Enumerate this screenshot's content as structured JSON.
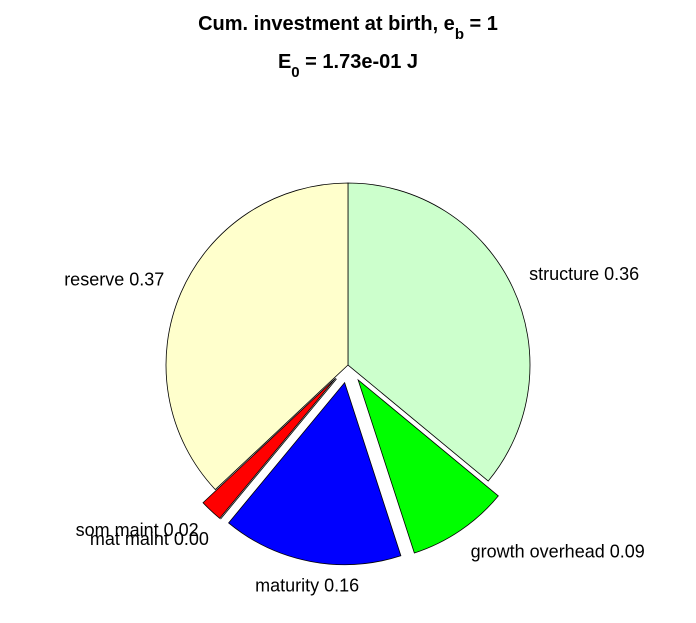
{
  "chart_data": {
    "type": "pie",
    "title": [
      {
        "text": "Cum. investment at birth, e"
      },
      {
        "sub": "b"
      },
      {
        "text": " = 1"
      }
    ],
    "subtitle": [
      {
        "text": "E"
      },
      {
        "sub": "0"
      },
      {
        "text": " = 1.73e-01 J"
      }
    ],
    "categories": [
      "structure",
      "growth overhead",
      "maturity",
      "mat maint",
      "som maint",
      "reserve"
    ],
    "values": [
      0.36,
      0.09,
      0.16,
      0.0,
      0.02,
      0.37
    ],
    "labels": [
      "structure 0.36",
      "growth overhead 0.09",
      "maturity 0.16",
      "mat maint 0.00",
      "som maint 0.02",
      "reserve 0.37"
    ],
    "colors": [
      "#ccffcc",
      "#00ff00",
      "#0000ff",
      "#00ffff",
      "#ff0000",
      "#ffffcc"
    ],
    "explode": [
      false,
      true,
      true,
      true,
      true,
      false
    ]
  }
}
